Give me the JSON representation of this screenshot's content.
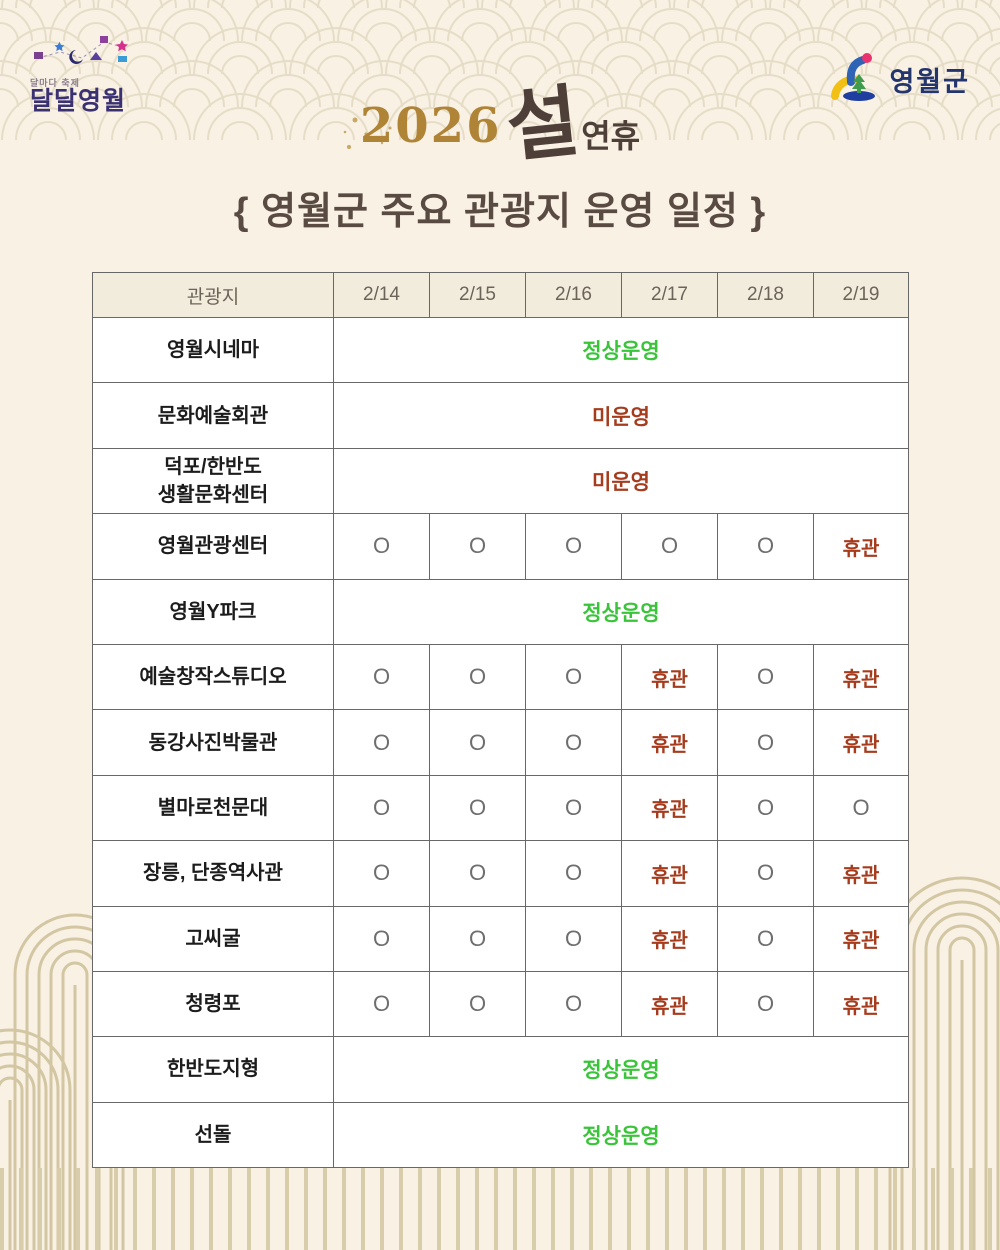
{
  "page": {
    "brand_top_left": {
      "tagline": "달마다 축제",
      "name": "달달영월"
    },
    "brand_top_right": {
      "name": "영월군"
    },
    "title": {
      "year": "2026",
      "seol": "설",
      "holiday": "연휴"
    },
    "subtitle": "{ 영월군 주요 관광지 운영 일정 }"
  },
  "colors": {
    "background": "#f8f1e4",
    "pattern_wave": "#e6ddc7",
    "pattern_arch": "#d3c7a3",
    "header_bg": "#f2ecdd",
    "border": "#686868",
    "open_green": "#3ac43a",
    "closed_red": "#a63c1e",
    "title_brown": "#594a42",
    "gold": "#b08436",
    "navy": "#24356d"
  },
  "table": {
    "headers": [
      "관광지",
      "2/14",
      "2/15",
      "2/16",
      "2/17",
      "2/18",
      "2/19"
    ],
    "rows": [
      {
        "label_lines": [
          "영월시네마"
        ],
        "span_status": {
          "text": "정상운영",
          "kind": "open"
        }
      },
      {
        "label_lines": [
          "문화예술회관"
        ],
        "span_status": {
          "text": "미운영",
          "kind": "notopen"
        }
      },
      {
        "label_lines": [
          "덕포/한반도",
          "생활문화센터"
        ],
        "span_status": {
          "text": "미운영",
          "kind": "notopen"
        }
      },
      {
        "label_lines": [
          "영월관광센터"
        ],
        "cells": [
          {
            "t": "O",
            "k": "ok"
          },
          {
            "t": "O",
            "k": "ok"
          },
          {
            "t": "O",
            "k": "ok"
          },
          {
            "t": "O",
            "k": "ok"
          },
          {
            "t": "O",
            "k": "ok"
          },
          {
            "t": "휴관",
            "k": "closed"
          }
        ]
      },
      {
        "label_lines": [
          "영월Y파크"
        ],
        "span_status": {
          "text": "정상운영",
          "kind": "open"
        }
      },
      {
        "label_lines": [
          "예술창작스튜디오"
        ],
        "cells": [
          {
            "t": "O",
            "k": "ok"
          },
          {
            "t": "O",
            "k": "ok"
          },
          {
            "t": "O",
            "k": "ok"
          },
          {
            "t": "휴관",
            "k": "closed"
          },
          {
            "t": "O",
            "k": "ok"
          },
          {
            "t": "휴관",
            "k": "closed"
          }
        ]
      },
      {
        "label_lines": [
          "동강사진박물관"
        ],
        "cells": [
          {
            "t": "O",
            "k": "ok"
          },
          {
            "t": "O",
            "k": "ok"
          },
          {
            "t": "O",
            "k": "ok"
          },
          {
            "t": "휴관",
            "k": "closed"
          },
          {
            "t": "O",
            "k": "ok"
          },
          {
            "t": "휴관",
            "k": "closed"
          }
        ]
      },
      {
        "label_lines": [
          "별마로천문대"
        ],
        "cells": [
          {
            "t": "O",
            "k": "ok"
          },
          {
            "t": "O",
            "k": "ok"
          },
          {
            "t": "O",
            "k": "ok"
          },
          {
            "t": "휴관",
            "k": "closed"
          },
          {
            "t": "O",
            "k": "ok"
          },
          {
            "t": "O",
            "k": "ok"
          }
        ]
      },
      {
        "label_lines": [
          "장릉, 단종역사관"
        ],
        "cells": [
          {
            "t": "O",
            "k": "ok"
          },
          {
            "t": "O",
            "k": "ok"
          },
          {
            "t": "O",
            "k": "ok"
          },
          {
            "t": "휴관",
            "k": "closed"
          },
          {
            "t": "O",
            "k": "ok"
          },
          {
            "t": "휴관",
            "k": "closed"
          }
        ]
      },
      {
        "label_lines": [
          "고씨굴"
        ],
        "cells": [
          {
            "t": "O",
            "k": "ok"
          },
          {
            "t": "O",
            "k": "ok"
          },
          {
            "t": "O",
            "k": "ok"
          },
          {
            "t": "휴관",
            "k": "closed"
          },
          {
            "t": "O",
            "k": "ok"
          },
          {
            "t": "휴관",
            "k": "closed"
          }
        ]
      },
      {
        "label_lines": [
          "청령포"
        ],
        "cells": [
          {
            "t": "O",
            "k": "ok"
          },
          {
            "t": "O",
            "k": "ok"
          },
          {
            "t": "O",
            "k": "ok"
          },
          {
            "t": "휴관",
            "k": "closed"
          },
          {
            "t": "O",
            "k": "ok"
          },
          {
            "t": "휴관",
            "k": "closed"
          }
        ]
      },
      {
        "label_lines": [
          "한반도지형"
        ],
        "span_status": {
          "text": "정상운영",
          "kind": "open"
        }
      },
      {
        "label_lines": [
          "선돌"
        ],
        "span_status": {
          "text": "정상운영",
          "kind": "open"
        }
      }
    ]
  }
}
